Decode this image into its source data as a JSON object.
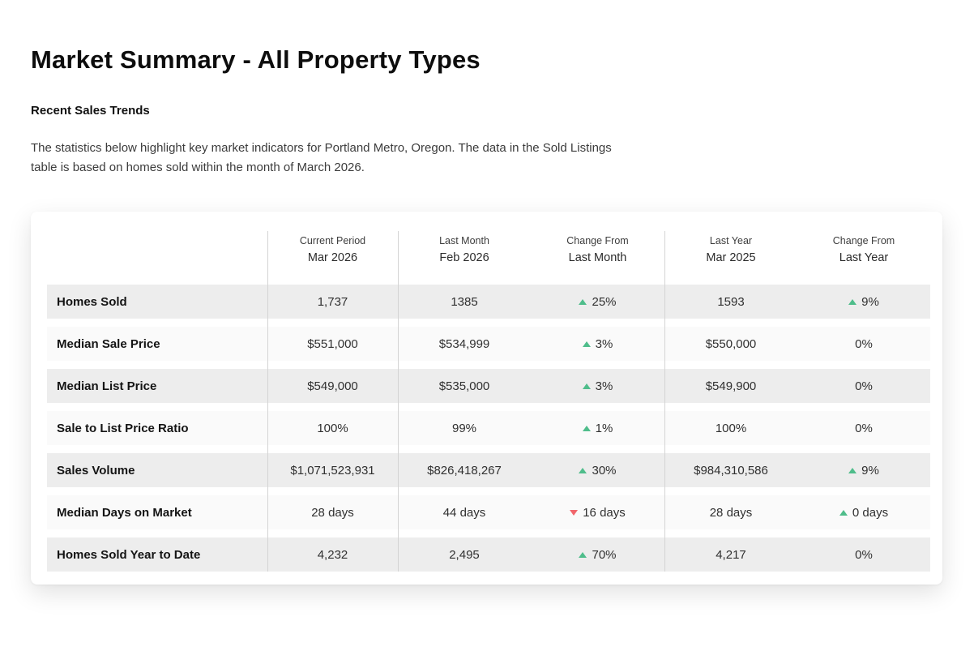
{
  "page": {
    "title": "Market Summary - All Property Types",
    "section_heading": "Recent Sales Trends",
    "description_line1": "The statistics below highlight key market indicators for Portland Metro, Oregon. The data in the Sold Listings",
    "description_line2": "table is based on homes sold within the month of March 2026."
  },
  "colors": {
    "positive": "#4fbd8b",
    "negative": "#f1666c",
    "row_dark": "#ededed",
    "row_light": "#fafafa",
    "divider": "#d4d4d4"
  },
  "table": {
    "column_groups": [
      {
        "line1": "Current Period",
        "line2": "Mar 2026"
      },
      {
        "line1": "Last Month",
        "line2": "Feb 2026"
      },
      {
        "line1": "Change From",
        "line2": "Last Month"
      },
      {
        "line1": "Last Year",
        "line2": "Mar 2025"
      },
      {
        "line1": "Change From",
        "line2": "Last Year"
      }
    ],
    "rows": [
      {
        "label": "Homes Sold",
        "current": "1,737",
        "last_month": "1385",
        "change_month": {
          "dir": "up",
          "text": "25%"
        },
        "last_year": "1593",
        "change_year": {
          "dir": "up",
          "text": "9%"
        }
      },
      {
        "label": "Median Sale Price",
        "current": "$551,000",
        "last_month": "$534,999",
        "change_month": {
          "dir": "up",
          "text": "3%"
        },
        "last_year": "$550,000",
        "change_year": {
          "dir": "none",
          "text": "0%"
        }
      },
      {
        "label": "Median List Price",
        "current": "$549,000",
        "last_month": "$535,000",
        "change_month": {
          "dir": "up",
          "text": "3%"
        },
        "last_year": "$549,900",
        "change_year": {
          "dir": "none",
          "text": "0%"
        }
      },
      {
        "label": "Sale to List Price Ratio",
        "current": "100%",
        "last_month": "99%",
        "change_month": {
          "dir": "up",
          "text": "1%"
        },
        "last_year": "100%",
        "change_year": {
          "dir": "none",
          "text": "0%"
        }
      },
      {
        "label": "Sales Volume",
        "current": "$1,071,523,931",
        "last_month": "$826,418,267",
        "change_month": {
          "dir": "up",
          "text": "30%"
        },
        "last_year": "$984,310,586",
        "change_year": {
          "dir": "up",
          "text": "9%"
        }
      },
      {
        "label": "Median Days on Market",
        "current": "28 days",
        "last_month": "44 days",
        "change_month": {
          "dir": "down",
          "text": "16 days"
        },
        "last_year": "28 days",
        "change_year": {
          "dir": "up",
          "text": "0 days"
        }
      },
      {
        "label": "Homes Sold Year to Date",
        "current": "4,232",
        "last_month": "2,495",
        "change_month": {
          "dir": "up",
          "text": "70%"
        },
        "last_year": "4,217",
        "change_year": {
          "dir": "none",
          "text": "0%"
        }
      }
    ]
  }
}
